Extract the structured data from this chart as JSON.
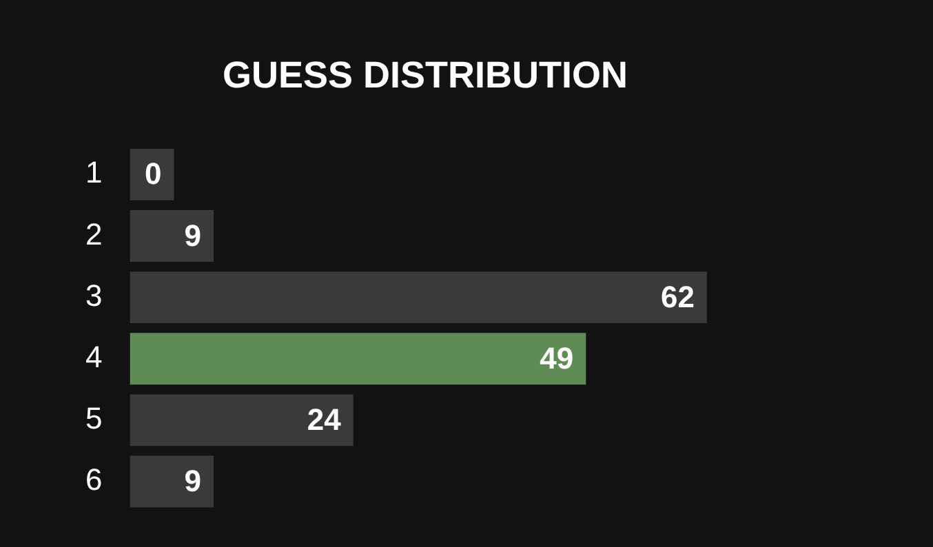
{
  "chart_data": {
    "type": "bar",
    "orientation": "horizontal",
    "title": "GUESS DISTRIBUTION",
    "categories": [
      "1",
      "2",
      "3",
      "4",
      "5",
      "6"
    ],
    "values": [
      0,
      9,
      62,
      49,
      24,
      9
    ],
    "colors": [
      "#3a3a3c",
      "#3a3a3c",
      "#3a3a3c",
      "#5f8b55",
      "#3a3a3c",
      "#3a3a3c"
    ],
    "data_labels": true,
    "legend": false
  }
}
